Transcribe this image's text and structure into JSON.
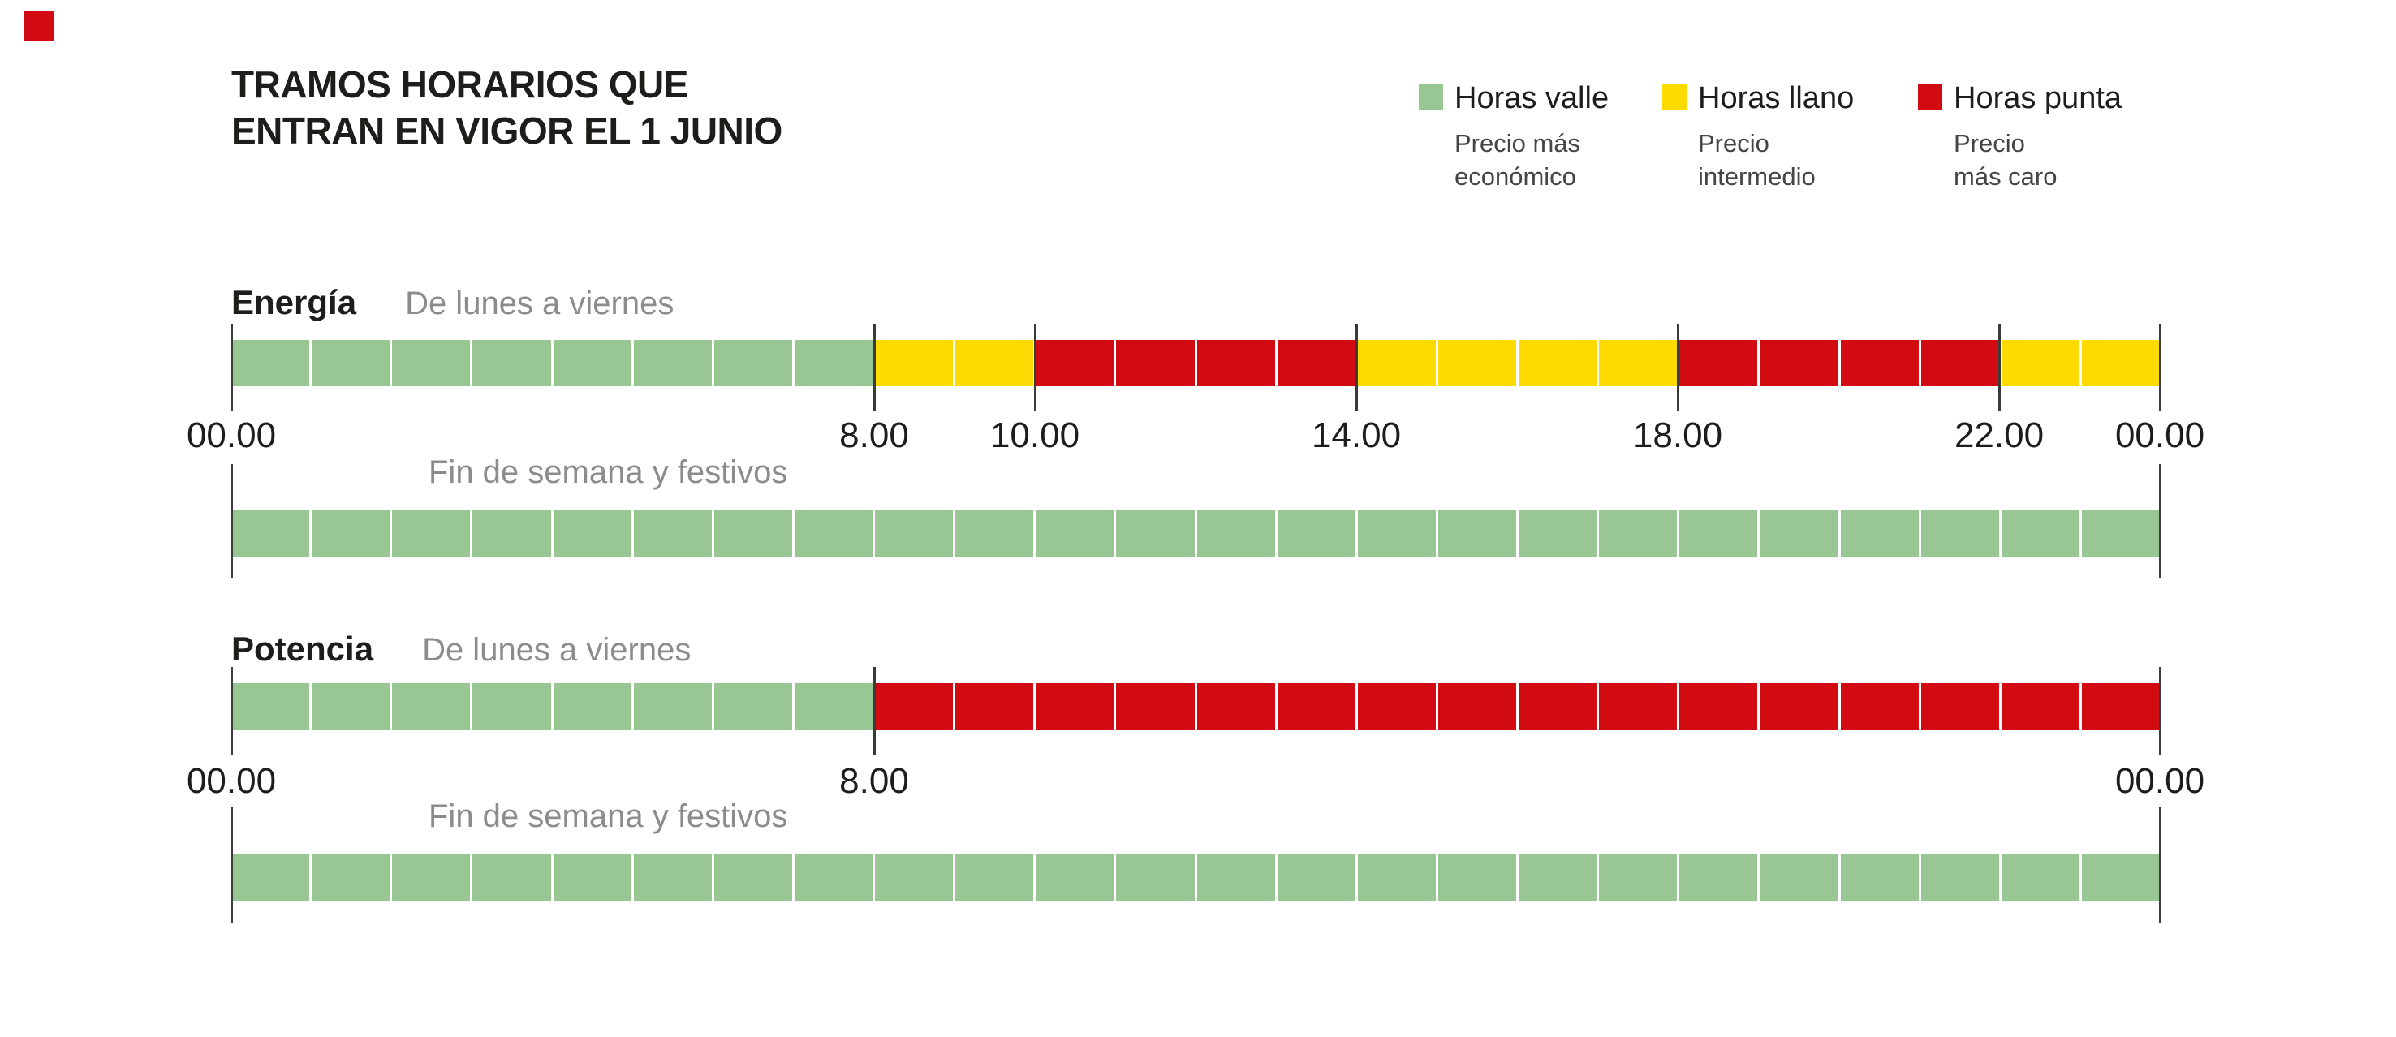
{
  "title": {
    "line1": "TRAMOS HORARIOS QUE",
    "line2": "ENTRAN EN VIGOR EL 1 JUNIO"
  },
  "brand": {
    "mark_color": "#d20a11"
  },
  "colors": {
    "valle": "#98c794",
    "llano": "#fedb00",
    "punta": "#d20a11",
    "text": "#1d1d1b",
    "muted_label": "#8c8c8b",
    "legend_desc": "#454543",
    "tick": "#3a3a39"
  },
  "legend": {
    "items": [
      {
        "key": "valle",
        "color": "#98c794",
        "label": "Horas valle",
        "desc_line1": "Precio más",
        "desc_line2": "económico"
      },
      {
        "key": "llano",
        "color": "#fedb00",
        "label": "Horas llano",
        "desc_line1": "Precio",
        "desc_line2": "intermedio"
      },
      {
        "key": "punta",
        "color": "#d20a11",
        "label": "Horas punta",
        "desc_line1": "Precio",
        "desc_line2": "más caro"
      }
    ]
  },
  "chart_data": {
    "type": "bar",
    "subtype": "time-of-day-segmented-timelines",
    "hours_range": [
      0,
      24
    ],
    "hour_step_segments": 1,
    "categories_legend": {
      "valle": "Horas valle — Precio más económico",
      "llano": "Horas llano — Precio intermedio",
      "punta": "Horas punta — Precio más caro"
    },
    "sections": [
      {
        "name": "Energía",
        "rows": [
          {
            "label": "De lunes a viernes",
            "segments": [
              {
                "from": 0,
                "to": 8,
                "category": "valle"
              },
              {
                "from": 8,
                "to": 10,
                "category": "llano"
              },
              {
                "from": 10,
                "to": 14,
                "category": "punta"
              },
              {
                "from": 14,
                "to": 18,
                "category": "llano"
              },
              {
                "from": 18,
                "to": 22,
                "category": "punta"
              },
              {
                "from": 22,
                "to": 24,
                "category": "llano"
              }
            ],
            "ticks": [
              0,
              8,
              10,
              14,
              18,
              22,
              24
            ],
            "axis_labels": [
              {
                "hour": 0,
                "text": "00.00"
              },
              {
                "hour": 8,
                "text": "8.00"
              },
              {
                "hour": 10,
                "text": "10.00"
              },
              {
                "hour": 14,
                "text": "14.00"
              },
              {
                "hour": 18,
                "text": "18.00"
              },
              {
                "hour": 22,
                "text": "22.00"
              },
              {
                "hour": 24,
                "text": "00.00"
              }
            ]
          },
          {
            "label": "Fin de semana y festivos",
            "segments": [
              {
                "from": 0,
                "to": 24,
                "category": "valle"
              }
            ],
            "ticks": [
              0,
              24
            ],
            "axis_labels": []
          }
        ]
      },
      {
        "name": "Potencia",
        "rows": [
          {
            "label": "De lunes a viernes",
            "segments": [
              {
                "from": 0,
                "to": 8,
                "category": "valle"
              },
              {
                "from": 8,
                "to": 24,
                "category": "punta"
              }
            ],
            "ticks": [
              0,
              8,
              24
            ],
            "axis_labels": [
              {
                "hour": 0,
                "text": "00.00"
              },
              {
                "hour": 8,
                "text": "8.00"
              },
              {
                "hour": 24,
                "text": "00.00"
              }
            ]
          },
          {
            "label": "Fin de semana y festivos",
            "segments": [
              {
                "from": 0,
                "to": 24,
                "category": "valle"
              }
            ],
            "ticks": [
              0,
              24
            ],
            "axis_labels": []
          }
        ]
      }
    ]
  }
}
